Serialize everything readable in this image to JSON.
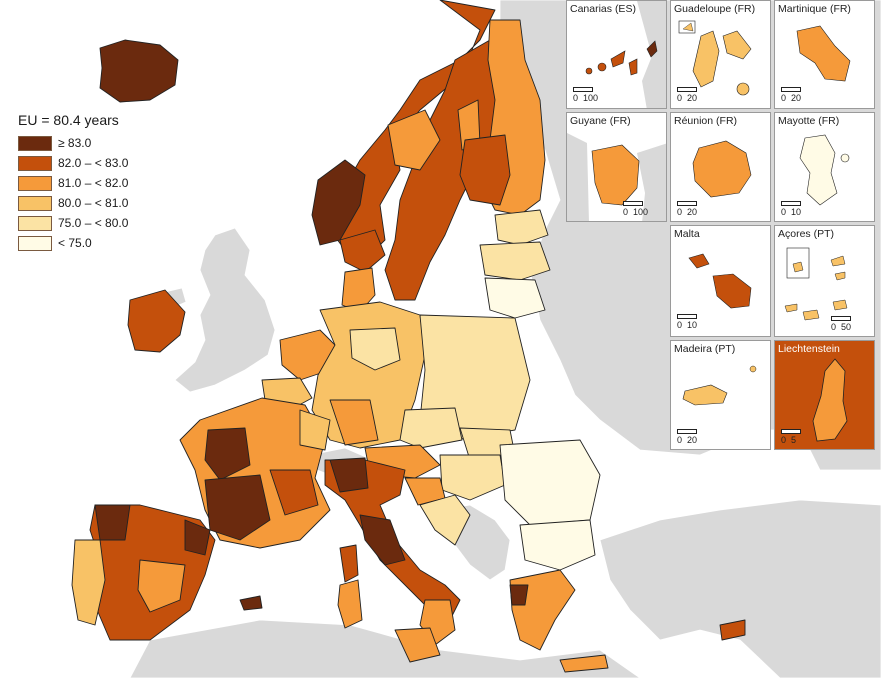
{
  "legend": {
    "title": "EU = 80.4 years",
    "classes": [
      {
        "label": "≥ 83.0",
        "color": "#6b2a0e"
      },
      {
        "label": "82.0 – < 83.0",
        "color": "#c4500c"
      },
      {
        "label": "81.0 – < 82.0",
        "color": "#f59a3a"
      },
      {
        "label": "80.0 – < 81.0",
        "color": "#f8c266"
      },
      {
        "label": "75.0 – < 80.0",
        "color": "#fbe3a4"
      },
      {
        "label": "< 75.0",
        "color": "#fffbe6"
      }
    ]
  },
  "colors": {
    "sea": "#ffffff",
    "non_eu_land": "#d9d9d9",
    "border": "#222222"
  },
  "insets": [
    {
      "id": "canarias",
      "title": "Canarias (ES)",
      "scale_labels": [
        "0",
        "100"
      ]
    },
    {
      "id": "guadeloupe",
      "title": "Guadeloupe (FR)",
      "scale_labels": [
        "0",
        "20"
      ]
    },
    {
      "id": "martinique",
      "title": "Martinique (FR)",
      "scale_labels": [
        "0",
        "20"
      ]
    },
    {
      "id": "guyane",
      "title": "Guyane (FR)",
      "scale_labels": [
        "0",
        "100"
      ]
    },
    {
      "id": "reunion",
      "title": "Réunion (FR)",
      "scale_labels": [
        "0",
        "20"
      ]
    },
    {
      "id": "mayotte",
      "title": "Mayotte (FR)",
      "scale_labels": [
        "0",
        "10"
      ]
    },
    {
      "id": "malta",
      "title": "Malta",
      "scale_labels": [
        "0",
        "10"
      ]
    },
    {
      "id": "acores",
      "title": "Açores (PT)",
      "scale_labels": [
        "0",
        "50"
      ]
    },
    {
      "id": "madeira",
      "title": "Madeira (PT)",
      "scale_labels": [
        "0",
        "20"
      ]
    },
    {
      "id": "liechtenstein",
      "title": "Liechtenstein",
      "scale_labels": [
        "0",
        "5"
      ]
    }
  ]
}
